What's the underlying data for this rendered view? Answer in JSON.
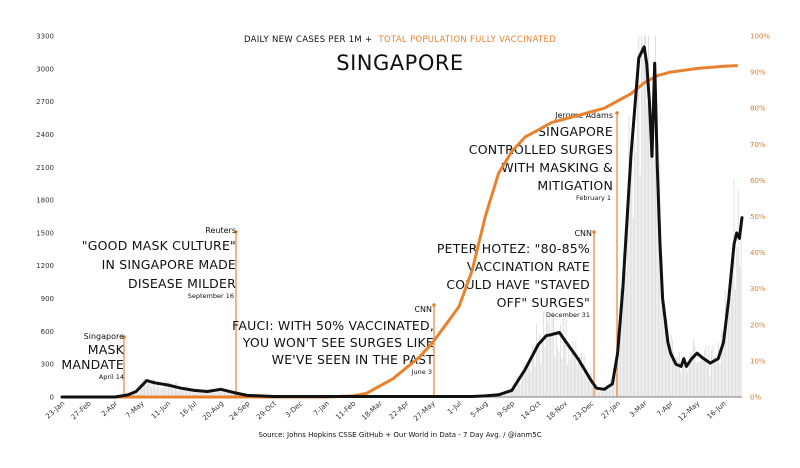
{
  "chart_data": {
    "type": "line",
    "title": "SINGAPORE",
    "subtitle_left": "DAILY NEW CASES PER 1M +",
    "subtitle_right": "TOTAL POPULATION FULLY VACCINATED",
    "source": "Source: Johns Hopkins CSSE GitHub + Our World in Data - 7 Day Avg. / @ianm5C",
    "colors": {
      "cases": "#111111",
      "vaccinated": "#e8822f",
      "annotation": "#e8822f",
      "bars": "#dcdcdc"
    },
    "left_axis": {
      "ylim": [
        0,
        3300
      ],
      "ticks": [
        "0",
        "300",
        "600",
        "900",
        "1200",
        "1500",
        "1800",
        "2100",
        "2400",
        "2700",
        "3000",
        "3300"
      ]
    },
    "right_axis": {
      "ylim": [
        0,
        100
      ],
      "ticks": [
        "0%",
        "10%",
        "20%",
        "30%",
        "40%",
        "50%",
        "60%",
        "70%",
        "80%",
        "90%",
        "100%"
      ]
    },
    "x_ticks": [
      "23-Jan",
      "27-Feb",
      "2-Apr",
      "7-May",
      "11-Jun",
      "16-Jul",
      "20-Aug",
      "24-Sep",
      "29-Oct",
      "3-Dec",
      "7-Jan",
      "11-Feb",
      "18-Mar",
      "22-Apr",
      "27-May",
      "1-Jul",
      "5-Aug",
      "9-Sep",
      "14-Oct",
      "18-Nov",
      "23-Dec",
      "27-Jan",
      "3-Mar",
      "7-Apr",
      "12-May",
      "16-Jun"
    ],
    "x_range": [
      0,
      25.7
    ],
    "series": [
      {
        "name": "Daily new cases per 1M (7-day avg)",
        "x": [
          0,
          1,
          2,
          2.5,
          2.8,
          3,
          3.2,
          3.5,
          4,
          4.5,
          5,
          5.5,
          6,
          6.5,
          7,
          8,
          9,
          10,
          11,
          12,
          13,
          14,
          15,
          15.5,
          16,
          16.5,
          17,
          17.5,
          18,
          18.3,
          18.5,
          18.8,
          19,
          19.5,
          20,
          20.2,
          20.5,
          20.8,
          21,
          21.2,
          21.5,
          21.8,
          22,
          22.1,
          22.2,
          22.3,
          22.4,
          22.5,
          22.6,
          22.7,
          22.8,
          22.9,
          23,
          23.2,
          23.4,
          23.5,
          23.6,
          23.8,
          24,
          24.2,
          24.5,
          24.8,
          25,
          25.2,
          25.4,
          25.5,
          25.6,
          25.7
        ],
        "values": [
          0,
          0,
          0,
          20,
          50,
          100,
          150,
          130,
          110,
          80,
          60,
          50,
          70,
          40,
          15,
          5,
          5,
          5,
          5,
          5,
          5,
          5,
          5,
          5,
          10,
          20,
          60,
          250,
          480,
          560,
          570,
          590,
          520,
          350,
          150,
          80,
          70,
          120,
          400,
          1000,
          2200,
          3100,
          3200,
          3050,
          2700,
          2200,
          3050,
          2100,
          1400,
          900,
          700,
          500,
          400,
          300,
          280,
          350,
          280,
          350,
          400,
          360,
          310,
          350,
          500,
          900,
          1400,
          1500,
          1450,
          1640
        ]
      },
      {
        "name": "Total population fully vaccinated (%)",
        "x": [
          0,
          10,
          11,
          11.5,
          12,
          12.5,
          13,
          13.5,
          14,
          14.5,
          15,
          15.5,
          16,
          16.5,
          17,
          17.5,
          18,
          18.5,
          19,
          19.5,
          20,
          20.5,
          21,
          21.5,
          22,
          22.5,
          23,
          23.5,
          24,
          24.5,
          25,
          25.5
        ],
        "values": [
          0,
          0,
          0.3,
          1,
          3,
          5,
          8,
          11,
          15,
          20,
          25,
          35,
          50,
          62,
          68,
          72,
          74,
          76,
          77,
          78,
          79,
          80,
          82,
          84,
          87,
          89,
          90,
          90.5,
          91,
          91.3,
          91.6,
          91.8
        ]
      }
    ],
    "annotations": [
      {
        "source": "Singapore",
        "lines": [
          "MASK",
          "MANDATE"
        ],
        "date": "April 14"
      },
      {
        "source": "Reuters",
        "lines": [
          "\"GOOD MASK CULTURE\"",
          "IN SINGAPORE MADE",
          "DISEASE MILDER"
        ],
        "date": "September 16"
      },
      {
        "source": "CNN",
        "lines": [
          "FAUCI: WITH 50% VACCINATED,",
          "YOU WON'T SEE SURGES LIKE",
          "WE'VE SEEN IN THE PAST"
        ],
        "date": "June 3"
      },
      {
        "source": "CNN",
        "lines": [
          "PETER HOTEZ: \"80-85%",
          "VACCINATION RATE",
          "COULD HAVE \"STAVED",
          "OFF\" SURGES\""
        ],
        "date": "December 31"
      },
      {
        "source": "Jerome Adams",
        "lines": [
          "SINGAPORE",
          "CONTROLLED SURGES",
          "WITH MASKING &",
          "MITIGATION"
        ],
        "date": "February 1"
      }
    ]
  }
}
